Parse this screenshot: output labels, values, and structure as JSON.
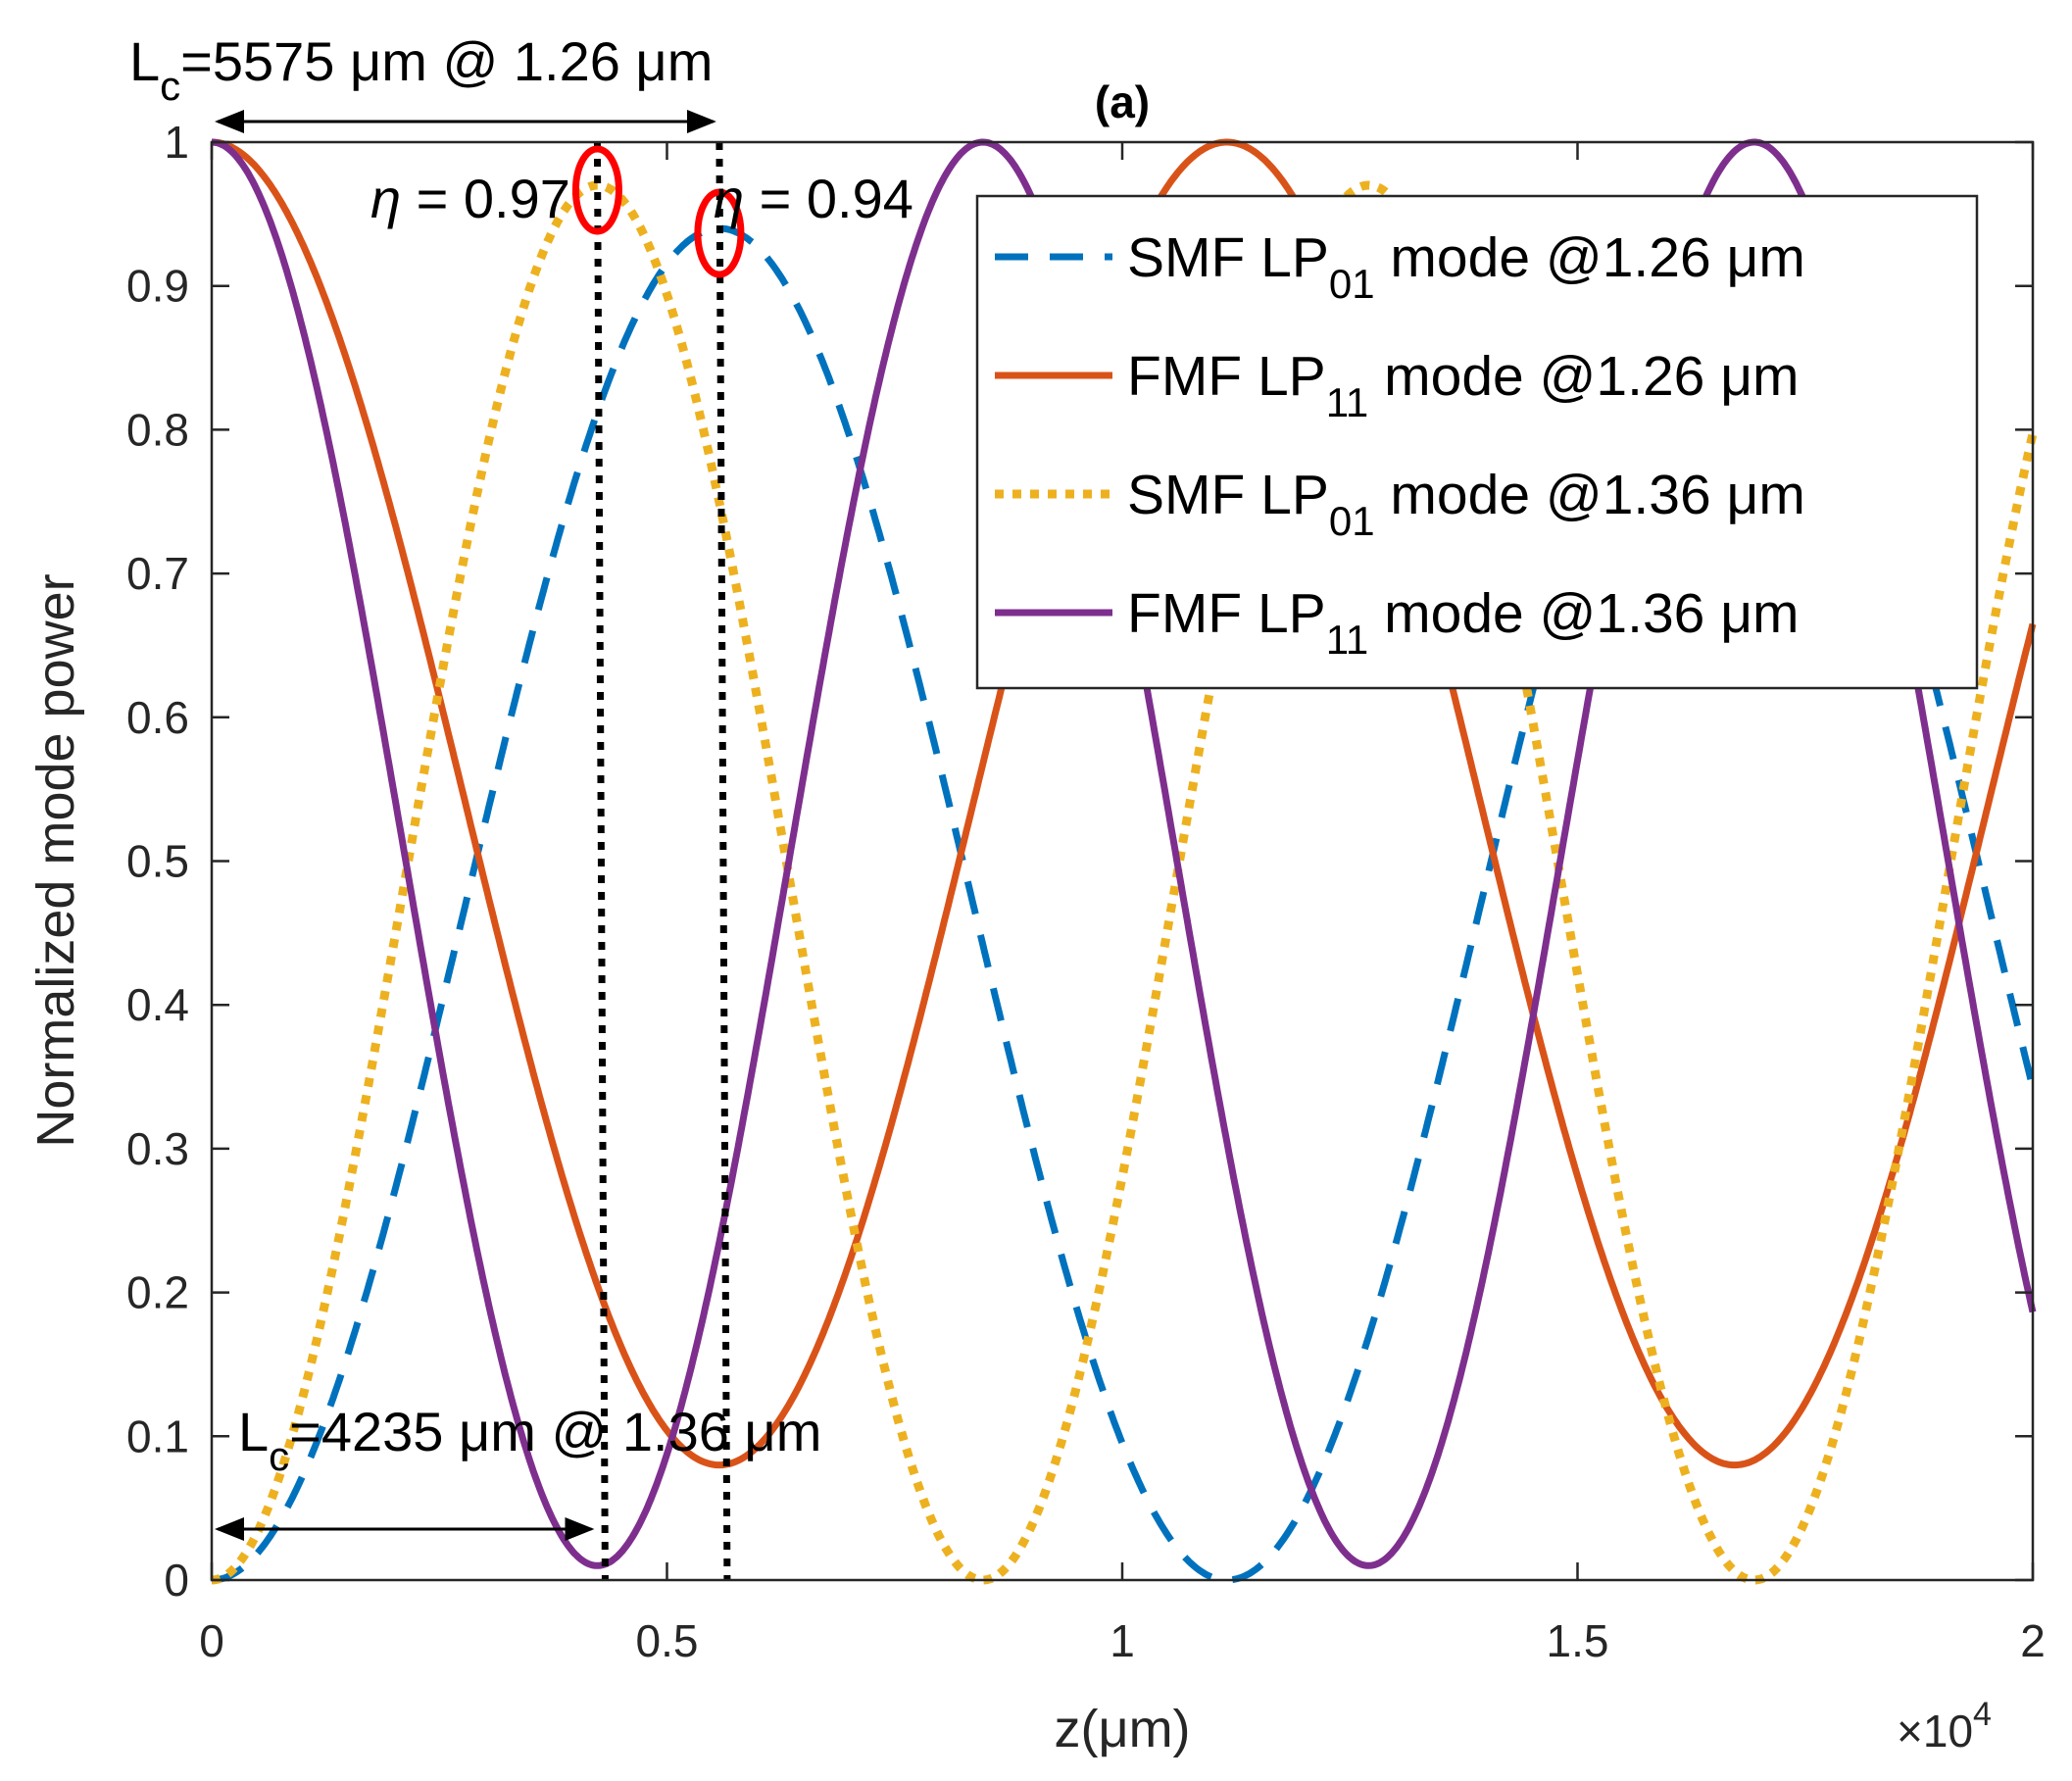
{
  "chart_data": {
    "type": "line",
    "title": "(a)",
    "xlabel": "z(μm)",
    "ylabel": "Normalized mode power",
    "x_exponent_base": "×10",
    "x_exponent_power": "4",
    "xlim": [
      0,
      20000
    ],
    "ylim": [
      0,
      1
    ],
    "x_ticks": [
      0,
      5000,
      10000,
      15000,
      20000
    ],
    "x_tick_labels": [
      "0",
      "0.5",
      "1",
      "1.5",
      "2"
    ],
    "y_ticks": [
      0,
      0.1,
      0.2,
      0.3,
      0.4,
      0.5,
      0.6,
      0.7,
      0.8,
      0.9,
      1
    ],
    "y_tick_labels": [
      "0",
      "0.1",
      "0.2",
      "0.3",
      "0.4",
      "0.5",
      "0.6",
      "0.7",
      "0.8",
      "0.9",
      "1"
    ],
    "grid": false,
    "legend_position": "top-right",
    "series": [
      {
        "name_main": "SMF LP",
        "name_sub": "01",
        "name_tail": " mode @1.26 μm",
        "color": "#0072BD",
        "style": "dashed",
        "coupling_length": 5575,
        "period": 11150,
        "max_transfer": 0.94,
        "kind": "smf"
      },
      {
        "name_main": "FMF LP",
        "name_sub": "11",
        "name_tail": " mode @1.26 μm",
        "color": "#D95319",
        "style": "solid",
        "coupling_length": 5575,
        "period": 11150,
        "max_transfer": 0.92,
        "kind": "fmf"
      },
      {
        "name_main": "SMF LP",
        "name_sub": "01",
        "name_tail": " mode @1.36 μm",
        "color": "#EDB120",
        "style": "dotted",
        "coupling_length": 4235,
        "period": 8470,
        "max_transfer": 0.97,
        "kind": "smf"
      },
      {
        "name_main": "FMF LP",
        "name_sub": "11",
        "name_tail": " mode @1.36 μm",
        "color": "#7E2F8E",
        "style": "solid",
        "coupling_length": 4235,
        "period": 8470,
        "max_transfer": 0.99,
        "kind": "fmf"
      }
    ],
    "annotations": {
      "lc_top": {
        "main": "L",
        "sub": "c",
        "rest": "=5575 μm @ 1.26 μm",
        "span": [
          0,
          5575
        ]
      },
      "lc_bottom": {
        "main": "L",
        "sub": "c",
        "rest": "=4235 μm @ 1.36 μm",
        "span": [
          0,
          4235
        ]
      },
      "eta1": {
        "symbol": "η",
        "text": " = 0.97",
        "x": 4235,
        "y": 0.97
      },
      "eta2": {
        "symbol": "η",
        "text": " = 0.94",
        "x": 5575,
        "y": 0.94
      },
      "vlines": [
        4235,
        5575
      ],
      "marker_color": "#FF0000"
    }
  }
}
